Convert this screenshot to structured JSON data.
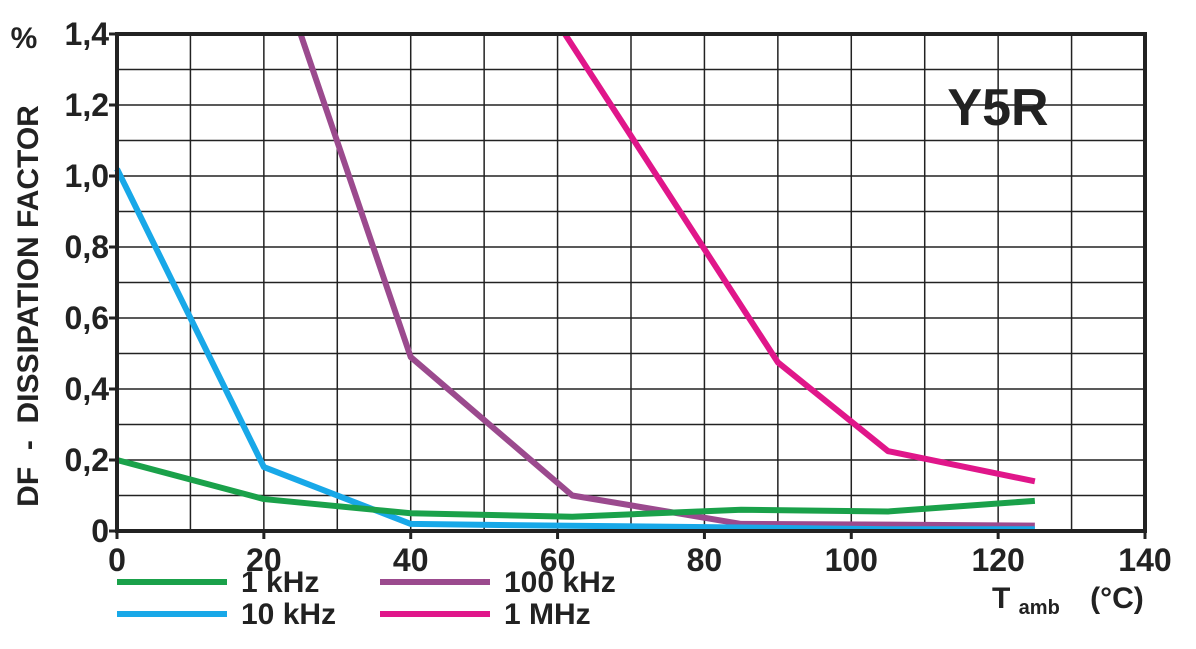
{
  "chart_data": {
    "type": "line",
    "title": "Y5R",
    "ylabel": "DF  -  DISSIPATION FACTOR",
    "yunit": "%",
    "xlabel_main": "T",
    "xlabel_sub": "amb",
    "xunit": "(°C)",
    "xlim": [
      0,
      140
    ],
    "ylim": [
      0,
      1.4
    ],
    "x_ticks": [
      {
        "value": 0,
        "label": "0"
      },
      {
        "value": 20,
        "label": "20"
      },
      {
        "value": 40,
        "label": "40"
      },
      {
        "value": 60,
        "label": "60"
      },
      {
        "value": 80,
        "label": "80"
      },
      {
        "value": 100,
        "label": "100"
      },
      {
        "value": 120,
        "label": "120"
      },
      {
        "value": 140,
        "label": "140"
      }
    ],
    "y_ticks": [
      {
        "value": 0,
        "label": "0"
      },
      {
        "value": 0.2,
        "label": "0,2"
      },
      {
        "value": 0.4,
        "label": "0,4"
      },
      {
        "value": 0.6,
        "label": "0,6"
      },
      {
        "value": 0.8,
        "label": "0,8"
      },
      {
        "value": 1.0,
        "label": "1,0"
      },
      {
        "value": 1.2,
        "label": "1,2"
      },
      {
        "value": 1.4,
        "label": "1,4"
      }
    ],
    "grid": true,
    "grid_x_step": 10,
    "grid_y_step": 0.1,
    "legend_position": "bottom-left",
    "series": [
      {
        "name": "1 kHz",
        "color": "#1aa14a",
        "points": [
          [
            0,
            0.2
          ],
          [
            20,
            0.09
          ],
          [
            40,
            0.05
          ],
          [
            62,
            0.04
          ],
          [
            85,
            0.06
          ],
          [
            105,
            0.055
          ],
          [
            125,
            0.085
          ]
        ]
      },
      {
        "name": "10 kHz",
        "color": "#18a8e8",
        "points": [
          [
            0,
            1.02
          ],
          [
            20,
            0.18
          ],
          [
            40,
            0.02
          ],
          [
            60,
            0.015
          ],
          [
            85,
            0.01
          ],
          [
            105,
            0.005
          ],
          [
            125,
            0.005
          ]
        ]
      },
      {
        "name": "100 kHz",
        "color": "#9b4a8e",
        "points": [
          [
            25,
            1.4
          ],
          [
            40,
            0.49
          ],
          [
            62,
            0.1
          ],
          [
            85,
            0.02
          ],
          [
            105,
            0.018
          ],
          [
            125,
            0.015
          ]
        ]
      },
      {
        "name": "1 MHz",
        "color": "#e0168a",
        "points": [
          [
            61,
            1.4
          ],
          [
            90,
            0.475
          ],
          [
            105,
            0.225
          ],
          [
            125,
            0.14
          ]
        ]
      }
    ]
  }
}
